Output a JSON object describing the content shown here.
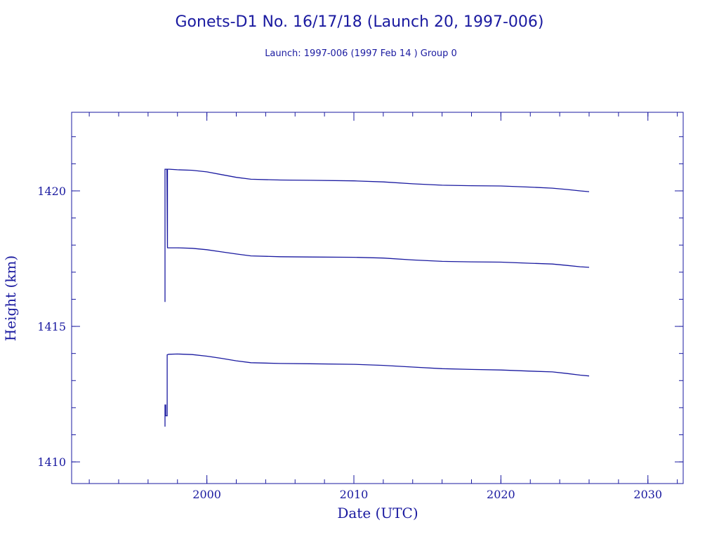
{
  "chart_data": {
    "type": "line",
    "title": "Gonets-D1 No. 16/17/18 (Launch 20, 1997-006)",
    "subtitle": "Launch: 1997-006  (1997 Feb 14 )  Group 0",
    "xlabel": "Date (UTC)",
    "ylabel": "Height (km)",
    "xlim": [
      1990.8,
      2032.4
    ],
    "ylim": [
      1409.2,
      1422.9
    ],
    "xticks": [
      2000,
      2010,
      2020,
      2030
    ],
    "xtick_labels": [
      "2000",
      "2010",
      "2020",
      "2030"
    ],
    "yticks": [
      1410,
      1415,
      1420
    ],
    "ytick_labels": [
      "1410",
      "1415",
      "1420"
    ],
    "grid": false,
    "color": "#1a1aa0",
    "series": [
      {
        "x": [
          1997.15,
          1997.15,
          1997.28,
          1997.32,
          1997.32,
          1997.45,
          1998.0,
          1999.0,
          2000.0,
          2001.0,
          2002.0,
          2003.0,
          2005.0,
          2007.0,
          2010.0,
          2012.0,
          2014.0,
          2016.0,
          2018.0,
          2020.0,
          2022.0,
          2023.5,
          2024.5,
          2025.4,
          2026.0
        ],
        "y": [
          1415.9,
          1420.8,
          1420.8,
          1417.9,
          1420.8,
          1420.8,
          1420.78,
          1420.76,
          1420.7,
          1420.6,
          1420.5,
          1420.43,
          1420.4,
          1420.39,
          1420.37,
          1420.33,
          1420.26,
          1420.21,
          1420.19,
          1420.18,
          1420.14,
          1420.1,
          1420.05,
          1420.0,
          1419.97
        ]
      },
      {
        "x": [
          1997.3,
          1997.45,
          1998.0,
          1999.0,
          2000.0,
          2001.0,
          2002.0,
          2003.0,
          2005.0,
          2007.0,
          2010.0,
          2012.0,
          2014.0,
          2016.0,
          2018.0,
          2020.0,
          2022.0,
          2023.5,
          2024.5,
          2025.4,
          2026.0
        ],
        "y": [
          1417.9,
          1417.9,
          1417.9,
          1417.88,
          1417.83,
          1417.75,
          1417.67,
          1417.6,
          1417.57,
          1417.56,
          1417.55,
          1417.52,
          1417.45,
          1417.4,
          1417.38,
          1417.37,
          1417.33,
          1417.3,
          1417.25,
          1417.2,
          1417.18
        ]
      },
      {
        "x": [
          1997.15,
          1997.15,
          1997.2,
          1997.2,
          1997.3,
          1997.3,
          1997.4,
          1998.0,
          1999.0,
          2000.0,
          2001.0,
          2002.0,
          2003.0,
          2005.0,
          2007.0,
          2010.0,
          2012.0,
          2014.0,
          2016.0,
          2018.0,
          2020.0,
          2022.0,
          2023.5,
          2024.5,
          2025.4,
          2026.0
        ],
        "y": [
          1411.3,
          1412.1,
          1412.1,
          1411.7,
          1411.7,
          1413.95,
          1413.97,
          1413.98,
          1413.96,
          1413.9,
          1413.82,
          1413.73,
          1413.66,
          1413.63,
          1413.62,
          1413.6,
          1413.56,
          1413.5,
          1413.44,
          1413.41,
          1413.39,
          1413.35,
          1413.32,
          1413.26,
          1413.2,
          1413.17
        ]
      }
    ]
  }
}
